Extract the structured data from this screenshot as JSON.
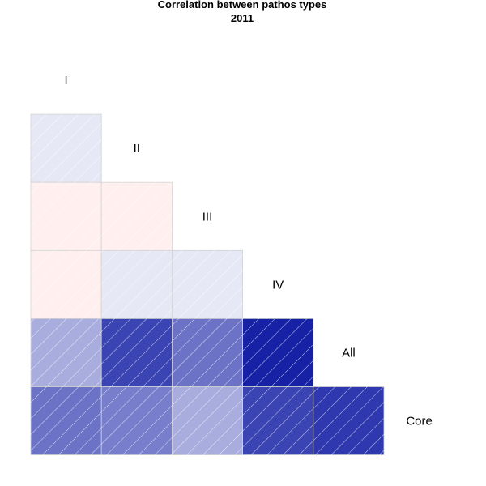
{
  "chart_data": {
    "type": "heatmap",
    "title": "Correlation between pathos types",
    "subtitle": "2011",
    "variables": [
      "I",
      "II",
      "III",
      "IV",
      "All",
      "Core"
    ],
    "layout": "lower-triangle",
    "value_range": [
      -1,
      1
    ],
    "colors": {
      "positive": "#0a15a0",
      "negative": "#ff5a5a",
      "neutral": "#ffffff",
      "cell_border": "#d3d3d3",
      "hatch": "#ffffff"
    },
    "cells": [
      {
        "row": "II",
        "col": "I",
        "value": 0.1
      },
      {
        "row": "III",
        "col": "I",
        "value": -0.1
      },
      {
        "row": "III",
        "col": "II",
        "value": -0.1
      },
      {
        "row": "IV",
        "col": "I",
        "value": -0.1
      },
      {
        "row": "IV",
        "col": "II",
        "value": 0.1
      },
      {
        "row": "IV",
        "col": "III",
        "value": 0.1
      },
      {
        "row": "All",
        "col": "I",
        "value": 0.35
      },
      {
        "row": "All",
        "col": "II",
        "value": 0.8
      },
      {
        "row": "All",
        "col": "III",
        "value": 0.6
      },
      {
        "row": "All",
        "col": "IV",
        "value": 0.95
      },
      {
        "row": "Core",
        "col": "I",
        "value": 0.6
      },
      {
        "row": "Core",
        "col": "II",
        "value": 0.55
      },
      {
        "row": "Core",
        "col": "III",
        "value": 0.35
      },
      {
        "row": "Core",
        "col": "IV",
        "value": 0.8
      },
      {
        "row": "Core",
        "col": "All",
        "value": 0.85
      }
    ]
  }
}
